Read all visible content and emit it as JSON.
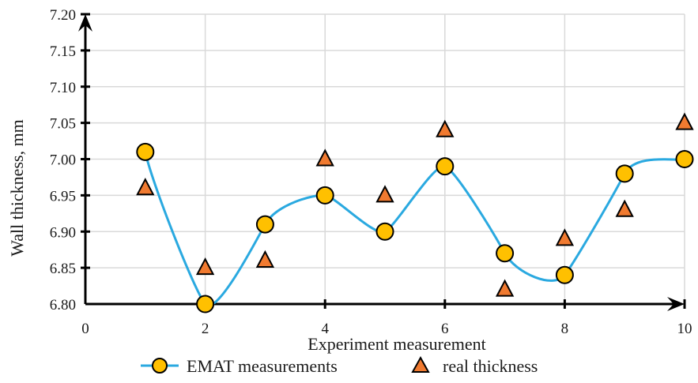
{
  "chart_data": {
    "type": "line",
    "title": "",
    "xlabel": "Experiment measurement",
    "ylabel": "Wall thickness, mm",
    "xlim": [
      0,
      10
    ],
    "ylim": [
      6.8,
      7.2
    ],
    "x_ticks": [
      "0",
      "2",
      "4",
      "6",
      "8",
      "10"
    ],
    "y_ticks": [
      "6.80",
      "6.85",
      "6.90",
      "6.95",
      "7.00",
      "7.05",
      "7.10",
      "7.15",
      "7.20"
    ],
    "grid": true,
    "legend_position": "bottom",
    "series": [
      {
        "name": "EMAT measurements",
        "kind": "smooth-line-with-markers",
        "marker": "circle",
        "line_color": "#2aa9e0",
        "marker_color": "#ffc000",
        "x": [
          1,
          2,
          3,
          4,
          5,
          6,
          7,
          8,
          9,
          10
        ],
        "values": [
          7.01,
          6.8,
          6.91,
          6.95,
          6.9,
          6.99,
          6.87,
          6.84,
          6.98,
          7.0
        ]
      },
      {
        "name": "real thickness",
        "kind": "scatter",
        "marker": "triangle",
        "marker_color": "#f07a30",
        "x": [
          1,
          2,
          3,
          4,
          5,
          6,
          7,
          8,
          9,
          10
        ],
        "values": [
          6.96,
          6.85,
          6.86,
          7.0,
          6.95,
          7.04,
          6.82,
          6.89,
          6.93,
          7.05
        ]
      }
    ]
  }
}
